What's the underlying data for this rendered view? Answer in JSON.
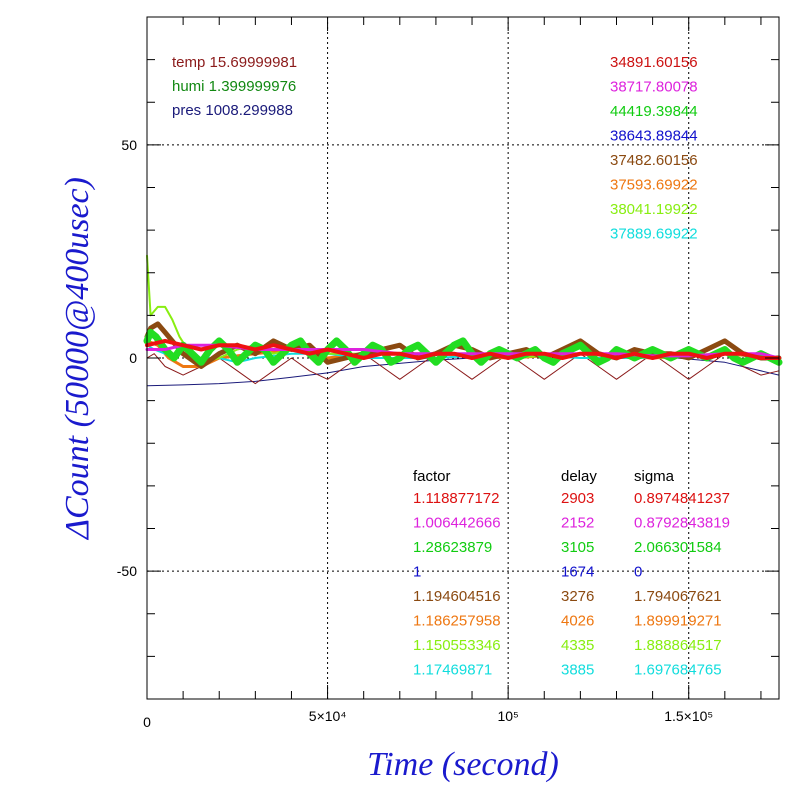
{
  "chart_data": {
    "type": "line",
    "xlabel": "Time (second)",
    "ylabel": "ΔCount (50000@400usec)",
    "xlim": [
      0,
      175000
    ],
    "ylim": [
      -80,
      80
    ],
    "x_ticks": [
      {
        "value": 0,
        "label": "0"
      },
      {
        "value": 50000,
        "label": "5×10⁴"
      },
      {
        "value": 100000,
        "label": "10⁵"
      },
      {
        "value": 150000,
        "label": "1.5×10⁵"
      }
    ],
    "y_ticks": [
      {
        "value": 50,
        "label": "50"
      },
      {
        "value": 0,
        "label": "0"
      },
      {
        "value": -50,
        "label": "-50"
      }
    ],
    "grid": true,
    "env": [
      {
        "name": "temp",
        "value": "15.69999981",
        "color": "#8b1a1a"
      },
      {
        "name": "humi",
        "value": "1.399999976",
        "color": "#118811"
      },
      {
        "name": "pres",
        "value": "1008.299988",
        "color": "#1a1a7a"
      }
    ],
    "totals": [
      {
        "value": "34891.60156",
        "color": "#cc1111"
      },
      {
        "value": "38717.80078",
        "color": "#dd22dd"
      },
      {
        "value": "44419.39844",
        "color": "#11cc11"
      },
      {
        "value": "38643.89844",
        "color": "#1111cc"
      },
      {
        "value": "37482.60156",
        "color": "#8b4a11"
      },
      {
        "value": "37593.69922",
        "color": "#ee7711"
      },
      {
        "value": "38041.19922",
        "color": "#88ee11"
      },
      {
        "value": "37889.69922",
        "color": "#11dddd"
      }
    ],
    "table_headers": {
      "factor": "factor",
      "delay": "delay",
      "sigma": "sigma"
    },
    "table_rows": [
      {
        "factor": "1.118877172",
        "delay": "2903",
        "sigma": "0.8974841237",
        "color": "#dd1111"
      },
      {
        "factor": "1.006442666",
        "delay": "2152",
        "sigma": "0.8792843819",
        "color": "#dd22dd"
      },
      {
        "factor": "1.28623879",
        "delay": "3105",
        "sigma": "2.066301584",
        "color": "#11cc11"
      },
      {
        "factor": "1",
        "delay": "1674",
        "sigma": "0",
        "color": "#1111cc"
      },
      {
        "factor": "1.194604516",
        "delay": "3276",
        "sigma": "1.794067621",
        "color": "#8b4a11"
      },
      {
        "factor": "1.186257958",
        "delay": "4026",
        "sigma": "1.899919271",
        "color": "#ee7711"
      },
      {
        "factor": "1.150553346",
        "delay": "4335",
        "sigma": "1.888864517",
        "color": "#88ee11"
      },
      {
        "factor": "1.17469871",
        "delay": "3885",
        "sigma": "1.697684765",
        "color": "#11dddd"
      }
    ],
    "series": [
      {
        "color": "#1a1a7a",
        "x": [
          0,
          10000,
          20000,
          30000,
          40000,
          50000,
          60000,
          80000,
          100000,
          120000,
          140000,
          160000,
          175000
        ],
        "y": [
          -6.5,
          -6.3,
          -6,
          -5.5,
          -4.5,
          -3.5,
          -2,
          -0.5,
          0.5,
          1,
          0.5,
          -1,
          -4
        ]
      },
      {
        "color": "#8b1a1a",
        "x": [
          0,
          2000,
          5000,
          10000,
          15000,
          20000,
          25000,
          30000,
          35000,
          40000,
          45000,
          50000,
          55000,
          60000,
          65000,
          70000,
          75000,
          80000,
          85000,
          90000,
          95000,
          100000,
          105000,
          110000,
          115000,
          120000,
          125000,
          130000,
          135000,
          140000,
          145000,
          150000,
          155000,
          160000,
          165000,
          170000,
          175000
        ],
        "y": [
          0,
          1,
          -2,
          -4,
          -2,
          0,
          -3,
          -6,
          -3,
          0,
          -3,
          -5,
          -2,
          1,
          -2,
          -5,
          -2,
          1,
          -2,
          -5,
          -2,
          1,
          -2,
          -5,
          -2,
          1,
          -2,
          -5,
          -2,
          1,
          -2,
          -5,
          -2,
          1,
          -2,
          -4,
          -3
        ]
      },
      {
        "color": "#ee7711",
        "x": [
          0,
          3000,
          6000,
          10000,
          15000,
          20000,
          30000,
          40000,
          50000,
          60000,
          80000,
          100000,
          120000,
          140000,
          160000,
          175000
        ],
        "y": [
          4,
          3,
          0,
          -2,
          -2,
          0,
          1,
          2,
          0,
          1,
          1,
          0,
          1,
          0,
          1,
          0
        ]
      },
      {
        "color": "#11dddd",
        "x": [
          0,
          2000,
          5000,
          10000,
          15000,
          20000,
          25000,
          30000,
          40000,
          50000,
          60000,
          80000,
          100000,
          120000,
          140000,
          160000,
          175000
        ],
        "y": [
          3,
          2,
          1,
          1,
          0,
          0,
          -1,
          0,
          1,
          1,
          0,
          0,
          1,
          0,
          0,
          1,
          0
        ]
      },
      {
        "color": "#88ee11",
        "x": [
          0,
          1000,
          2000,
          3000,
          5000,
          7000,
          9000,
          12000,
          15000,
          20000,
          25000,
          30000,
          35000,
          40000,
          45000,
          50000,
          60000,
          80000,
          100000,
          120000,
          140000,
          160000,
          175000
        ],
        "y": [
          24,
          10,
          11,
          12,
          12,
          9,
          5,
          1,
          -1,
          0,
          2,
          3,
          1,
          2,
          2,
          1,
          1,
          1,
          0,
          1,
          0,
          1,
          0
        ]
      },
      {
        "color": "#8b4a11",
        "x": [
          0,
          1000,
          3000,
          5000,
          8000,
          10000,
          15000,
          20000,
          25000,
          30000,
          35000,
          40000,
          45000,
          50000,
          55000,
          60000,
          65000,
          70000,
          75000,
          80000,
          85000,
          90000,
          95000,
          100000,
          105000,
          110000,
          115000,
          120000,
          125000,
          130000,
          135000,
          140000,
          145000,
          150000,
          155000,
          160000,
          165000,
          170000,
          175000
        ],
        "y": [
          5,
          7,
          8,
          6,
          3,
          1,
          -2,
          1,
          3,
          1,
          4,
          2,
          3,
          -1,
          0,
          1,
          2,
          3,
          0,
          1,
          3,
          2,
          0,
          1,
          2,
          0,
          2,
          4,
          1,
          0,
          2,
          1,
          1,
          0,
          2,
          4,
          1,
          0,
          0
        ]
      },
      {
        "color": "#22dd22",
        "x": [
          0,
          1000,
          2500,
          5000,
          7500,
          10000,
          12500,
          15000,
          17500,
          20000,
          22500,
          25000,
          27500,
          30000,
          32500,
          35000,
          37500,
          40000,
          42500,
          45000,
          47500,
          50000,
          52500,
          55000,
          57500,
          60000,
          62500,
          65000,
          67500,
          70000,
          72500,
          75000,
          77500,
          80000,
          82500,
          85000,
          87500,
          90000,
          92500,
          95000,
          97500,
          100000,
          102500,
          105000,
          107500,
          110000,
          112500,
          115000,
          117500,
          120000,
          122500,
          125000,
          127500,
          130000,
          132500,
          135000,
          137500,
          140000,
          142500,
          145000,
          147500,
          150000,
          152500,
          155000,
          157500,
          160000,
          162500,
          165000,
          167500,
          170000,
          172500,
          175000
        ],
        "y": [
          4,
          6,
          5,
          2,
          0,
          3,
          1,
          -1,
          2,
          4,
          2,
          -1,
          1,
          3,
          2,
          -1,
          1,
          3,
          4,
          1,
          -1,
          2,
          4,
          2,
          -1,
          1,
          3,
          2,
          -1,
          0,
          2,
          3,
          1,
          -1,
          1,
          3,
          4,
          1,
          -1,
          1,
          2,
          1,
          0,
          1,
          2,
          0,
          -1,
          1,
          2,
          3,
          1,
          -1,
          0,
          2,
          1,
          0,
          1,
          2,
          1,
          0,
          1,
          2,
          1,
          0,
          1,
          2,
          0,
          -1,
          0,
          1,
          0,
          -1
        ]
      },
      {
        "color": "#dd22dd",
        "x": [
          0,
          5000,
          10000,
          20000,
          30000,
          40000,
          50000,
          60000,
          70000,
          80000,
          90000,
          100000,
          110000,
          120000,
          130000,
          140000,
          150000,
          160000,
          170000,
          175000
        ],
        "y": [
          2,
          2,
          3,
          3,
          2,
          2,
          2,
          2,
          1,
          1,
          1,
          1,
          1,
          1,
          1,
          0.5,
          0.5,
          1,
          1,
          0
        ]
      },
      {
        "color": "#ee1111",
        "x": [
          0,
          5000,
          10000,
          15000,
          20000,
          25000,
          30000,
          35000,
          40000,
          45000,
          50000,
          55000,
          60000,
          65000,
          70000,
          75000,
          80000,
          85000,
          90000,
          95000,
          100000,
          105000,
          110000,
          115000,
          120000,
          125000,
          130000,
          135000,
          140000,
          145000,
          150000,
          155000,
          160000,
          165000,
          170000,
          175000
        ],
        "y": [
          3,
          4,
          3,
          2,
          3,
          3,
          2,
          3,
          2,
          1,
          2,
          1,
          0,
          1,
          1,
          0,
          1,
          1,
          0,
          1,
          0,
          1,
          1,
          0,
          1,
          1,
          0,
          1,
          0,
          1,
          1,
          0,
          1,
          1,
          0,
          0
        ]
      }
    ]
  }
}
